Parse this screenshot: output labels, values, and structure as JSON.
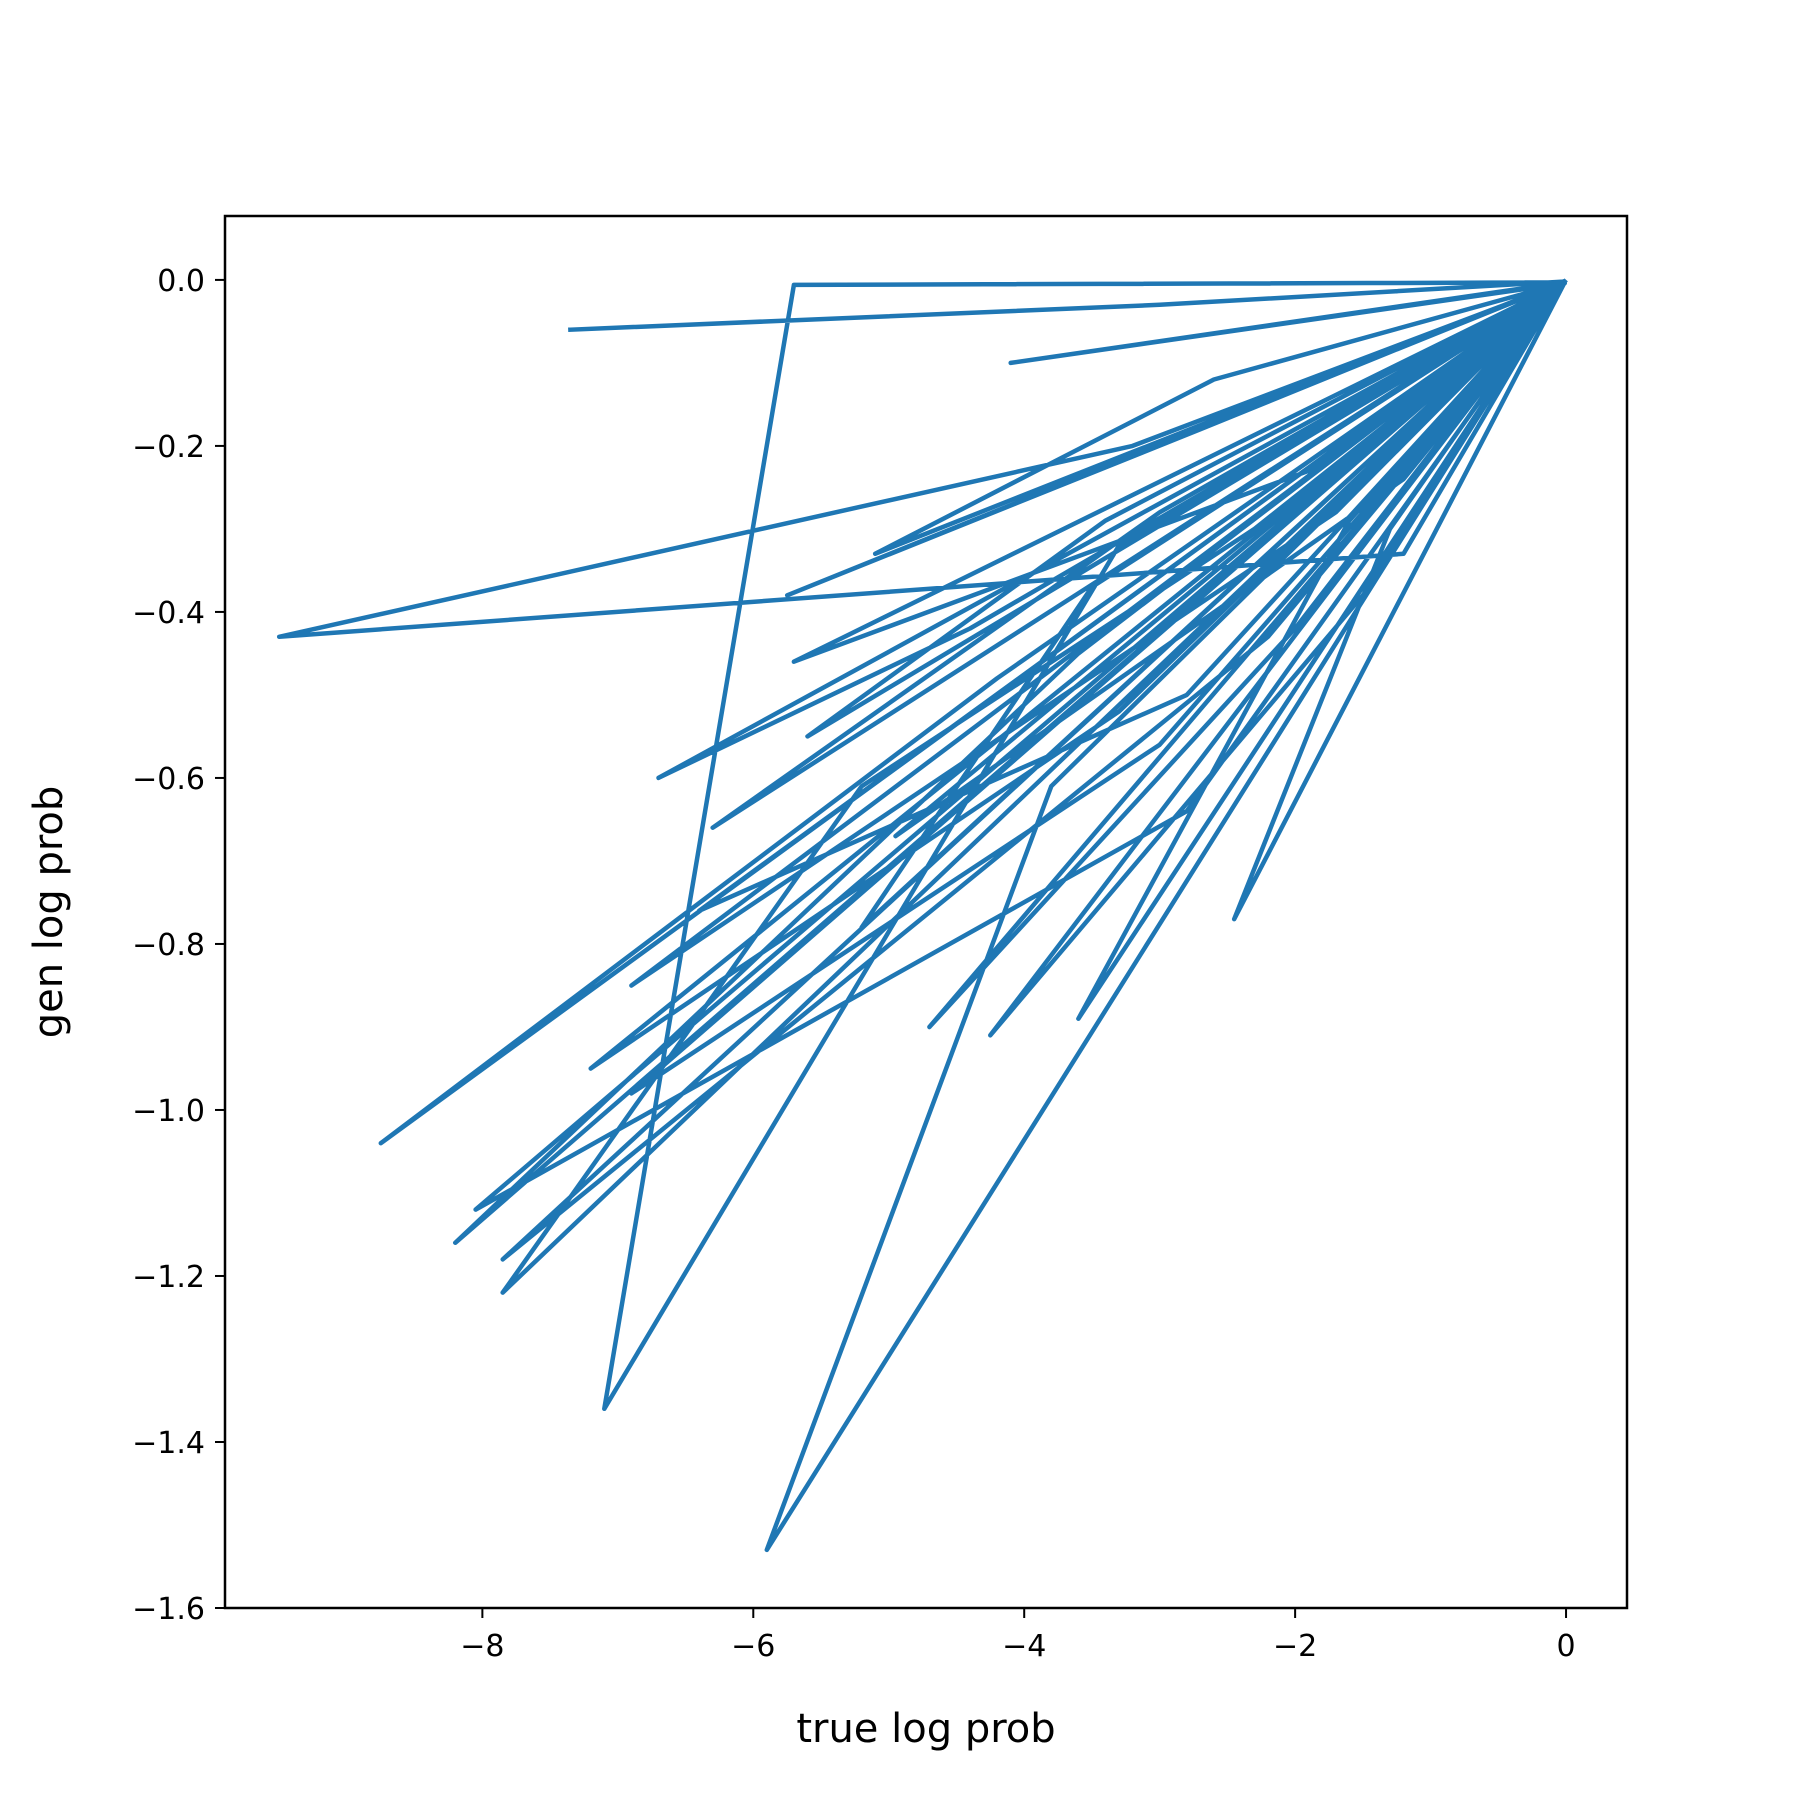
{
  "chart_data": {
    "type": "line",
    "title": "",
    "xlabel": "true log prob",
    "ylabel": "gen log prob",
    "xlim": [
      -9.9,
      0.45
    ],
    "ylim": [
      -1.6,
      0.077
    ],
    "xticks": [
      -8,
      -6,
      -4,
      -2,
      0
    ],
    "xtick_labels": [
      "−8",
      "−6",
      "−4",
      "−2",
      "0"
    ],
    "yticks": [
      0.0,
      -0.2,
      -0.4,
      -0.6,
      -0.8,
      -1.0,
      -1.2,
      -1.4,
      -1.6
    ],
    "ytick_labels": [
      "0.0",
      "−0.2",
      "−0.4",
      "−0.6",
      "−0.8",
      "−1.0",
      "−1.2",
      "−1.4",
      "−1.6"
    ],
    "grid": false,
    "legend": "none",
    "colors": {
      "line": "#1f77b4",
      "axes": "#000000",
      "background": "#ffffff"
    },
    "series": [
      {
        "x": [
          -7.35,
          -3.0,
          -0.02,
          -1.2,
          -9.5,
          -3.2,
          -0.05,
          -4.1,
          -0.02,
          -5.7,
          -7.1,
          -3.3,
          -0.03,
          -5.9,
          -3.8,
          -0.01,
          -6.3,
          -3.0,
          -0.02,
          -8.75,
          -4.2,
          -0.01,
          -5.6,
          -3.4,
          -0.02,
          -5.1,
          -2.6,
          -0.03,
          -6.7,
          -4.4,
          -0.01,
          -2.45,
          -1.3,
          -0.02,
          -8.2,
          -3.6,
          -0.01,
          -5.7,
          -1.9,
          -0.02,
          -7.85,
          -5.2,
          -2.3,
          -0.01,
          -4.7,
          -2.0,
          -0.02,
          -8.05,
          -2.8,
          -0.01,
          -7.2,
          -3.3,
          -0.02,
          -5.2,
          -3.5,
          -0.01,
          -6.9,
          -1.7,
          -0.01,
          -4.25,
          -1.5,
          -0.02,
          -6.4,
          -2.8,
          -0.02,
          -3.6,
          -1.6,
          -0.01,
          -5.75,
          -2.7,
          -0.02,
          -7.85,
          -2.2,
          -0.01,
          -4.95,
          -1.2,
          -0.02,
          -6.9,
          -3.0,
          -0.01
        ],
        "y": [
          -0.06,
          -0.03,
          -0.002,
          -0.33,
          -0.43,
          -0.2,
          -0.005,
          -0.1,
          -0.003,
          -0.006,
          -1.36,
          -0.32,
          -0.004,
          -1.53,
          -0.61,
          -0.002,
          -0.66,
          -0.28,
          -0.003,
          -1.04,
          -0.48,
          -0.004,
          -0.55,
          -0.29,
          -0.002,
          -0.33,
          -0.12,
          -0.004,
          -0.6,
          -0.42,
          -0.003,
          -0.77,
          -0.3,
          -0.002,
          -1.16,
          -0.45,
          -0.003,
          -0.46,
          -0.23,
          -0.002,
          -1.22,
          -0.61,
          -0.3,
          -0.003,
          -0.9,
          -0.42,
          -0.002,
          -1.12,
          -0.64,
          -0.003,
          -0.95,
          -0.52,
          -0.002,
          -0.78,
          -0.37,
          -0.004,
          -0.85,
          -0.28,
          -0.002,
          -0.91,
          -0.38,
          -0.003,
          -0.76,
          -0.5,
          -0.003,
          -0.89,
          -0.29,
          -0.002,
          -0.38,
          -0.18,
          -0.002,
          -1.18,
          -0.43,
          -0.002,
          -0.67,
          -0.24,
          -0.003,
          -0.98,
          -0.56,
          -0.002
        ]
      }
    ]
  }
}
